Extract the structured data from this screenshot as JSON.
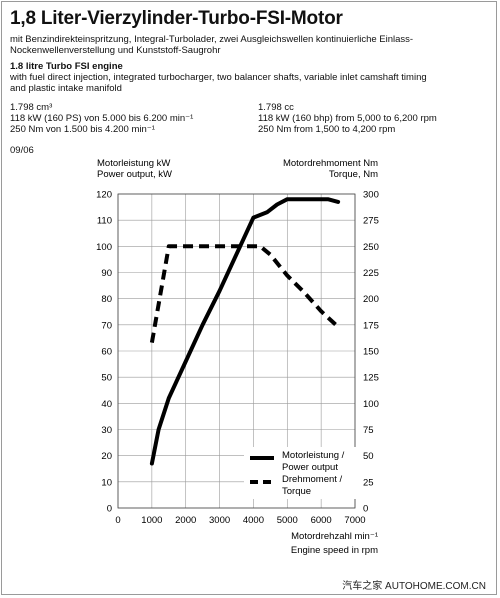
{
  "header": {
    "title": "1,8 Liter-Vierzylinder-Turbo-FSI-Motor",
    "subtitle_de": "mit Benzindirekteinspritzung, Integral-Turbolader, zwei Ausgleichswellen kontinuierliche Einlass-Nockenwellenverstellung und Kunststoff-Saugrohr",
    "title_en": "1.8 litre Turbo FSI engine",
    "subtitle_en": "with fuel direct injection, integrated turbocharger, two balancer shafts, variable inlet camshaft timing and plastic intake manifold"
  },
  "specs_de": {
    "displacement": "1.798 cm³",
    "power": "118 kW (160 PS) von 5.000 bis 6.200 min⁻¹",
    "torque": "250 Nm von 1.500 bis 4.200 min⁻¹"
  },
  "specs_en": {
    "displacement": "1.798 cc",
    "power": "118 kW (160 bhp) from 5,000 to 6,200 rpm",
    "torque": "250 Nm from 1,500 to 4,200 rpm"
  },
  "date": "09/06",
  "footer": {
    "watermark": "汽车之家 AUTOHOME.COM.CN"
  },
  "chart_data": {
    "type": "line",
    "left_axis_label_1": "Motorleistung kW",
    "left_axis_label_2": "Power output, kW",
    "right_axis_label_1": "Motordrehmoment Nm",
    "right_axis_label_2": "Torque, Nm",
    "x_label_1": "Motordrehzahl min⁻¹",
    "x_label_2": "Engine speed in rpm",
    "xlim": [
      0,
      7000
    ],
    "x_ticks": [
      "0",
      "1000",
      "2000",
      "3000",
      "4000",
      "5000",
      "6000",
      "7000"
    ],
    "ylim_left": [
      0,
      120
    ],
    "y_ticks_left": [
      "0",
      "10",
      "20",
      "30",
      "40",
      "50",
      "60",
      "70",
      "80",
      "90",
      "100",
      "110",
      "120"
    ],
    "ylim_right": [
      0,
      300
    ],
    "y_ticks_right": [
      "0",
      "25",
      "50",
      "75",
      "100",
      "125",
      "150",
      "175",
      "200",
      "225",
      "250",
      "275",
      "300"
    ],
    "grid": true,
    "legend_position": "bottom-right",
    "series": [
      {
        "name": "Motorleistung / Power output",
        "axis": "left",
        "style": "solid",
        "x": [
          1000,
          1200,
          1500,
          2000,
          2500,
          3000,
          3500,
          4000,
          4400,
          4700,
          5000,
          5500,
          6000,
          6200,
          6500
        ],
        "y": [
          17,
          30,
          42,
          56,
          70,
          83,
          97,
          111,
          113,
          116,
          118,
          118,
          118,
          118,
          117
        ]
      },
      {
        "name": "Drehmoment / Torque",
        "axis": "right",
        "style": "dashed",
        "x": [
          1000,
          1500,
          2000,
          2500,
          3000,
          3500,
          4000,
          4200,
          4500,
          5000,
          5500,
          6000,
          6500
        ],
        "y": [
          158,
          250,
          250,
          250,
          250,
          250,
          250,
          250,
          242,
          222,
          206,
          188,
          173
        ]
      }
    ]
  }
}
